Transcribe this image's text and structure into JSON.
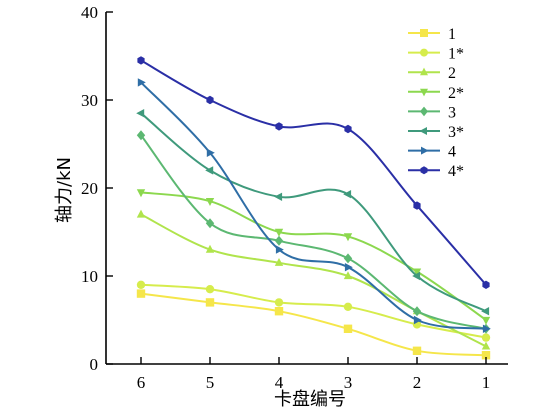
{
  "chart_data": {
    "type": "line",
    "xlabel": "卡盘编号",
    "ylabel": "轴力/kN",
    "categories": [
      "6",
      "5",
      "4",
      "3",
      "2",
      "1"
    ],
    "ylim": [
      0,
      40
    ],
    "yticks": [
      "0",
      "10",
      "20",
      "30",
      "40"
    ],
    "grid": false,
    "legend_position": "top-right",
    "series": [
      {
        "name": "1",
        "color": "#f5e64a",
        "marker": "square",
        "values": [
          8,
          7,
          6,
          4,
          1.5,
          1
        ]
      },
      {
        "name": "1*",
        "color": "#d6ec4c",
        "marker": "circle",
        "values": [
          9,
          8.5,
          7,
          6.5,
          4.5,
          3
        ]
      },
      {
        "name": "2",
        "color": "#b0e44c",
        "marker": "triangle-up",
        "values": [
          17,
          13,
          11.5,
          10,
          6,
          2
        ]
      },
      {
        "name": "2*",
        "color": "#8cd84e",
        "marker": "triangle-down",
        "values": [
          19.5,
          18.5,
          15,
          14.5,
          10.5,
          5
        ]
      },
      {
        "name": "3",
        "color": "#5cb872",
        "marker": "diamond",
        "values": [
          26,
          16,
          14,
          12,
          6,
          4
        ]
      },
      {
        "name": "3*",
        "color": "#3f9a7c",
        "marker": "triangle-left",
        "values": [
          28.5,
          22,
          19,
          19.3,
          10,
          6
        ]
      },
      {
        "name": "4",
        "color": "#2f6ea6",
        "marker": "triangle-right",
        "values": [
          32,
          24,
          13,
          11,
          5,
          4
        ]
      },
      {
        "name": "4*",
        "color": "#2a2fa6",
        "marker": "hexagon",
        "values": [
          34.5,
          30,
          27,
          26.7,
          18,
          9
        ]
      }
    ]
  }
}
